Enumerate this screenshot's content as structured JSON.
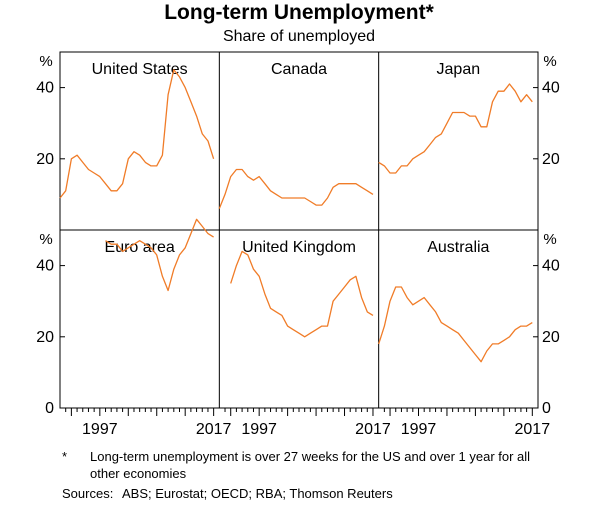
{
  "header": {
    "title": "Long-term Unemployment*",
    "subtitle": "Share of unemployed"
  },
  "footnote": {
    "star": "*",
    "text": "Long-term unemployment is over 27 weeks for the US and over 1 year for all other economies",
    "sources_label": "Sources:",
    "sources": "ABS; Eurostat; OECD; RBA; Thomson Reuters"
  },
  "chart_data": {
    "type": "line",
    "title": "Long-term Unemployment*",
    "subtitle": "Share of unemployed",
    "unit": "%",
    "yticks": [
      0,
      20,
      40
    ],
    "ylim": [
      0,
      50
    ],
    "xlim": [
      1990,
      2018
    ],
    "xticks": [
      1997,
      2017
    ],
    "line_color": "#f07c28",
    "panels": [
      {
        "name": "United States",
        "series": [
          [
            1990,
            9
          ],
          [
            1991,
            11
          ],
          [
            1992,
            20
          ],
          [
            1993,
            21
          ],
          [
            1994,
            19
          ],
          [
            1995,
            17
          ],
          [
            1996,
            16
          ],
          [
            1997,
            15
          ],
          [
            1998,
            13
          ],
          [
            1999,
            11
          ],
          [
            2000,
            11
          ],
          [
            2001,
            13
          ],
          [
            2002,
            20
          ],
          [
            2003,
            22
          ],
          [
            2004,
            21
          ],
          [
            2005,
            19
          ],
          [
            2006,
            18
          ],
          [
            2007,
            18
          ],
          [
            2008,
            21
          ],
          [
            2009,
            38
          ],
          [
            2010,
            45
          ],
          [
            2011,
            43
          ],
          [
            2012,
            40
          ],
          [
            2013,
            36
          ],
          [
            2014,
            32
          ],
          [
            2015,
            27
          ],
          [
            2016,
            25
          ],
          [
            2017,
            20
          ]
        ]
      },
      {
        "name": "Canada",
        "series": [
          [
            1990,
            6
          ],
          [
            1991,
            10
          ],
          [
            1992,
            15
          ],
          [
            1993,
            17
          ],
          [
            1994,
            17
          ],
          [
            1995,
            15
          ],
          [
            1996,
            14
          ],
          [
            1997,
            15
          ],
          [
            1998,
            13
          ],
          [
            1999,
            11
          ],
          [
            2000,
            10
          ],
          [
            2001,
            9
          ],
          [
            2002,
            9
          ],
          [
            2003,
            9
          ],
          [
            2004,
            9
          ],
          [
            2005,
            9
          ],
          [
            2006,
            8
          ],
          [
            2007,
            7
          ],
          [
            2008,
            7
          ],
          [
            2009,
            9
          ],
          [
            2010,
            12
          ],
          [
            2011,
            13
          ],
          [
            2012,
            13
          ],
          [
            2013,
            13
          ],
          [
            2014,
            13
          ],
          [
            2015,
            12
          ],
          [
            2016,
            11
          ],
          [
            2017,
            10
          ]
        ]
      },
      {
        "name": "Japan",
        "series": [
          [
            1990,
            19
          ],
          [
            1991,
            18
          ],
          [
            1992,
            16
          ],
          [
            1993,
            16
          ],
          [
            1994,
            18
          ],
          [
            1995,
            18
          ],
          [
            1996,
            20
          ],
          [
            1997,
            21
          ],
          [
            1998,
            22
          ],
          [
            1999,
            24
          ],
          [
            2000,
            26
          ],
          [
            2001,
            27
          ],
          [
            2002,
            30
          ],
          [
            2003,
            33
          ],
          [
            2004,
            33
          ],
          [
            2005,
            33
          ],
          [
            2006,
            32
          ],
          [
            2007,
            32
          ],
          [
            2008,
            29
          ],
          [
            2009,
            29
          ],
          [
            2010,
            36
          ],
          [
            2011,
            39
          ],
          [
            2012,
            39
          ],
          [
            2013,
            41
          ],
          [
            2014,
            39
          ],
          [
            2015,
            36
          ],
          [
            2016,
            38
          ],
          [
            2017,
            36
          ]
        ]
      },
      {
        "name": "Euro area",
        "series": [
          [
            1998,
            47
          ],
          [
            1999,
            46
          ],
          [
            2000,
            46
          ],
          [
            2001,
            44
          ],
          [
            2002,
            45
          ],
          [
            2003,
            46
          ],
          [
            2004,
            47
          ],
          [
            2005,
            46
          ],
          [
            2006,
            45
          ],
          [
            2007,
            43
          ],
          [
            2008,
            37
          ],
          [
            2009,
            33
          ],
          [
            2010,
            39
          ],
          [
            2011,
            43
          ],
          [
            2012,
            45
          ],
          [
            2013,
            49
          ],
          [
            2014,
            53
          ],
          [
            2015,
            51
          ],
          [
            2016,
            49
          ],
          [
            2017,
            48
          ]
        ]
      },
      {
        "name": "United Kingdom",
        "series": [
          [
            1992,
            35
          ],
          [
            1993,
            40
          ],
          [
            1994,
            44
          ],
          [
            1995,
            43
          ],
          [
            1996,
            39
          ],
          [
            1997,
            37
          ],
          [
            1998,
            32
          ],
          [
            1999,
            28
          ],
          [
            2000,
            27
          ],
          [
            2001,
            26
          ],
          [
            2002,
            23
          ],
          [
            2003,
            22
          ],
          [
            2004,
            21
          ],
          [
            2005,
            20
          ],
          [
            2006,
            21
          ],
          [
            2007,
            22
          ],
          [
            2008,
            23
          ],
          [
            2009,
            23
          ],
          [
            2010,
            30
          ],
          [
            2011,
            32
          ],
          [
            2012,
            34
          ],
          [
            2013,
            36
          ],
          [
            2014,
            37
          ],
          [
            2015,
            31
          ],
          [
            2016,
            27
          ],
          [
            2017,
            26
          ]
        ]
      },
      {
        "name": "Australia",
        "series": [
          [
            1990,
            18
          ],
          [
            1991,
            23
          ],
          [
            1992,
            30
          ],
          [
            1993,
            34
          ],
          [
            1994,
            34
          ],
          [
            1995,
            31
          ],
          [
            1996,
            29
          ],
          [
            1997,
            30
          ],
          [
            1998,
            31
          ],
          [
            1999,
            29
          ],
          [
            2000,
            27
          ],
          [
            2001,
            24
          ],
          [
            2002,
            23
          ],
          [
            2003,
            22
          ],
          [
            2004,
            21
          ],
          [
            2005,
            19
          ],
          [
            2006,
            17
          ],
          [
            2007,
            15
          ],
          [
            2008,
            13
          ],
          [
            2009,
            16
          ],
          [
            2010,
            18
          ],
          [
            2011,
            18
          ],
          [
            2012,
            19
          ],
          [
            2013,
            20
          ],
          [
            2014,
            22
          ],
          [
            2015,
            23
          ],
          [
            2016,
            23
          ],
          [
            2017,
            24
          ]
        ]
      }
    ]
  }
}
